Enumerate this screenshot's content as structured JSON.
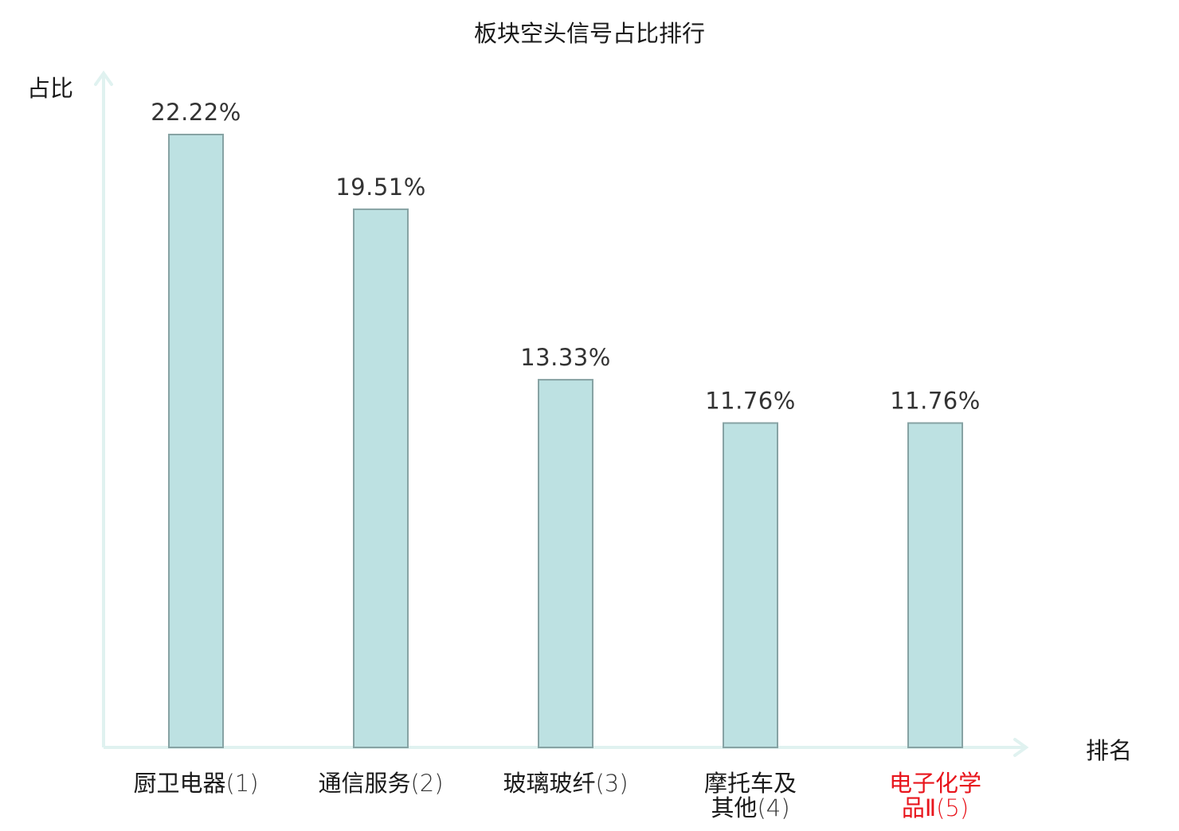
{
  "chart_data": {
    "type": "bar",
    "title": "板块空头信号占比排行",
    "ylabel": "占比",
    "xlabel": "排名",
    "categories": [
      {
        "label": [
          "厨卫电器",
          "(1)"
        ],
        "highlight": false
      },
      {
        "label": [
          "通信服务",
          "(2)"
        ],
        "highlight": false
      },
      {
        "label": [
          "玻璃玻纤",
          "(3)"
        ],
        "highlight": false
      },
      {
        "label": [
          "摩托车及",
          "其他",
          "(4)"
        ],
        "highlight": false
      },
      {
        "label": [
          "电子化学",
          "品Ⅱ",
          "(5)"
        ],
        "highlight": true
      }
    ],
    "values": [
      22.22,
      19.51,
      13.33,
      11.76,
      11.76
    ],
    "value_labels": [
      "22.22%",
      "19.51%",
      "13.33%",
      "11.76%",
      "11.76%"
    ],
    "ylim": [
      0,
      24.5
    ],
    "grid": false,
    "colors": {
      "bar_fill": "#bde1e2",
      "bar_stroke": "#87a3a4",
      "axis": "#e0f2f0",
      "text": "#1a1a1a",
      "value_text": "#333333",
      "highlight": "#e8151c"
    }
  }
}
